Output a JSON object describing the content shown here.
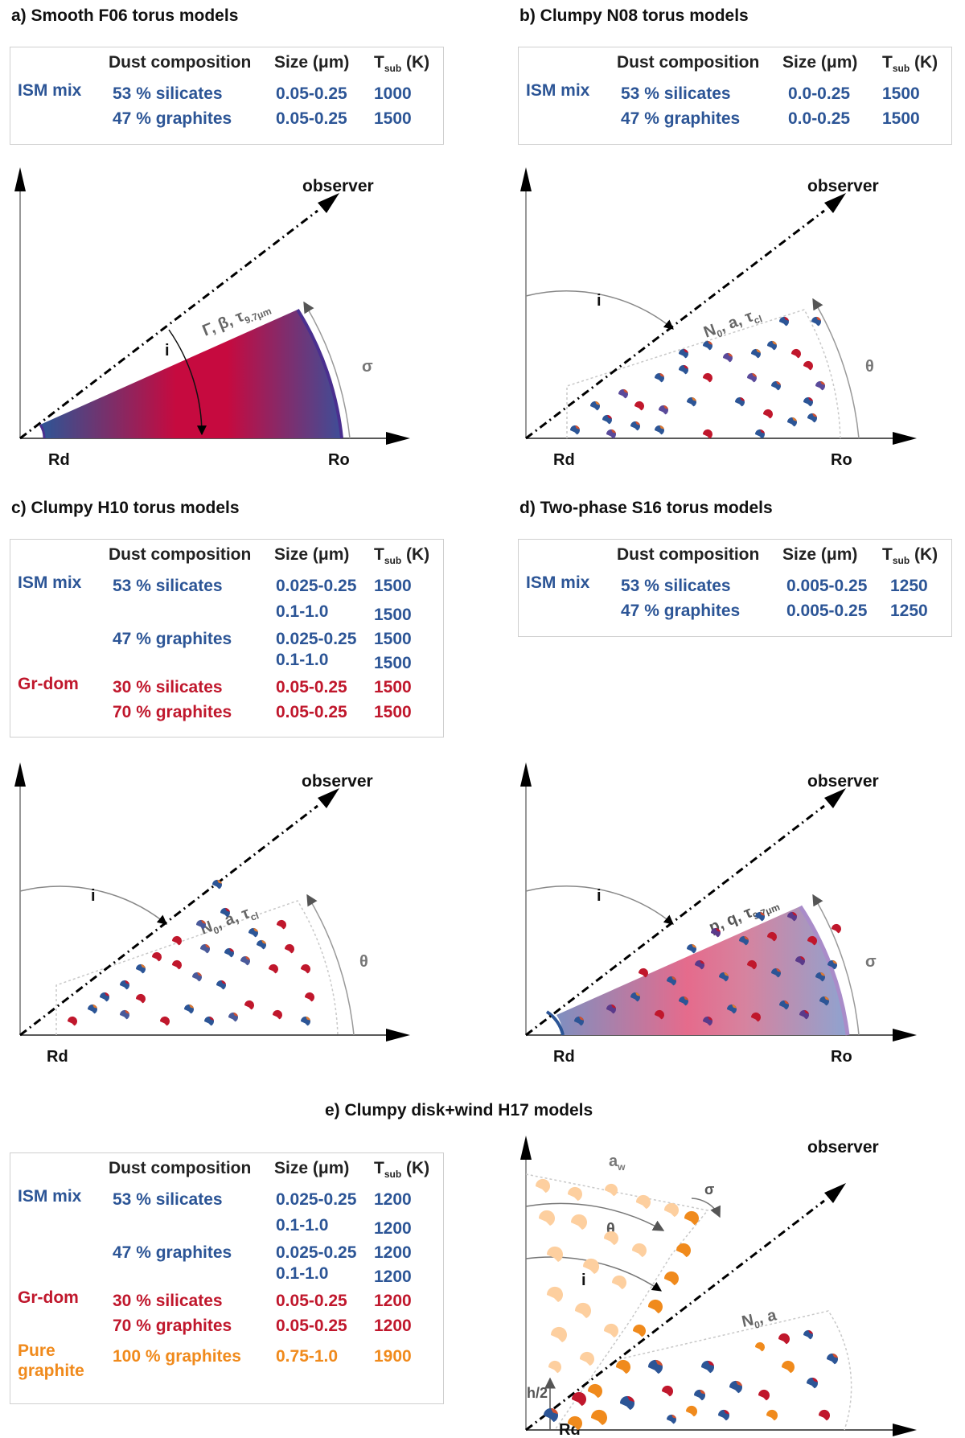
{
  "panels": {
    "a": {
      "title": "a) Smooth F06 torus models",
      "table": {
        "headers": {
          "composition": "Dust composition",
          "size": "Size (μm)",
          "tsub_main": "T",
          "tsub_sub": "sub",
          "tsub_unit": "(K)"
        },
        "groups": [
          {
            "name": "ISM mix",
            "rows": [
              {
                "composition": "53 % silicates",
                "size": "0.05-0.25",
                "tsub": "1000"
              },
              {
                "composition": "47 % graphites",
                "size": "0.05-0.25",
                "tsub": "1500"
              }
            ]
          }
        ]
      },
      "diagram": {
        "observer": "observer",
        "inner_radius": "Rd",
        "outer_radius": "Ro",
        "inclination": "i",
        "angle": "σ",
        "params": "Γ, β, τ",
        "params_sub": "9.7μm"
      }
    },
    "b": {
      "title": "b) Clumpy N08 torus models",
      "table": {
        "headers": {
          "composition": "Dust composition",
          "size": "Size (μm)",
          "tsub_main": "T",
          "tsub_sub": "sub",
          "tsub_unit": "(K)"
        },
        "groups": [
          {
            "name": "ISM mix",
            "rows": [
              {
                "composition": "53 % silicates",
                "size": "0.0-0.25",
                "tsub": "1500"
              },
              {
                "composition": "47 % graphites",
                "size": "0.0-0.25",
                "tsub": "1500"
              }
            ]
          }
        ]
      },
      "diagram": {
        "observer": "observer",
        "inner_radius": "Rd",
        "outer_radius": "Ro",
        "inclination": "i",
        "angle": "θ",
        "params_n": "N",
        "params_n_sub": "0",
        "params_rest": ", a, τ",
        "params_sub": "cl"
      }
    },
    "c": {
      "title": "c) Clumpy H10 torus models",
      "table": {
        "headers": {
          "composition": "Dust composition",
          "size": "Size (μm)",
          "tsub_main": "T",
          "tsub_sub": "sub",
          "tsub_unit": "(K)"
        },
        "groups": [
          {
            "name": "ISM mix",
            "rows": [
              {
                "composition": "53 % silicates",
                "size": "0.025-0.25",
                "tsub": "1500"
              },
              {
                "composition": "",
                "size": "0.1-1.0",
                "tsub": "1500"
              },
              {
                "composition": "47 % graphites",
                "size": "0.025-0.25",
                "tsub": "1500"
              },
              {
                "composition": "",
                "size": "0.1-1.0",
                "tsub": "1500"
              }
            ]
          },
          {
            "name": "Gr-dom",
            "rows": [
              {
                "composition": "30 % silicates",
                "size": "0.05-0.25",
                "tsub": "1500"
              },
              {
                "composition": "70 % graphites",
                "size": "0.05-0.25",
                "tsub": "1500"
              }
            ]
          }
        ]
      },
      "diagram": {
        "observer": "observer",
        "inner_radius": "Rd",
        "inclination": "i",
        "angle": "θ",
        "params_n": "N",
        "params_n_sub": "0",
        "params_rest": ", a, τ",
        "params_sub": "cl"
      }
    },
    "d": {
      "title": "d) Two-phase S16 torus models",
      "table": {
        "headers": {
          "composition": "Dust composition",
          "size": "Size (μm)",
          "tsub_main": "T",
          "tsub_sub": "sub",
          "tsub_unit": "(K)"
        },
        "groups": [
          {
            "name": "ISM mix",
            "rows": [
              {
                "composition": "53 % silicates",
                "size": "0.005-0.25",
                "tsub": "1250"
              },
              {
                "composition": "47 % graphites",
                "size": "0.005-0.25",
                "tsub": "1250"
              }
            ]
          }
        ]
      },
      "diagram": {
        "observer": "observer",
        "inner_radius": "Rd",
        "outer_radius": "Ro",
        "inclination": "i",
        "angle": "σ",
        "params": "p, q, τ",
        "params_sub": "9.7μm"
      }
    },
    "e": {
      "title": "e) Clumpy disk+wind H17 models",
      "table": {
        "headers": {
          "composition": "Dust composition",
          "size": "Size (μm)",
          "tsub_main": "T",
          "tsub_sub": "sub",
          "tsub_unit": "(K)"
        },
        "groups": [
          {
            "name": "ISM mix",
            "rows": [
              {
                "composition": "53 % silicates",
                "size": "0.025-0.25",
                "tsub": "1200"
              },
              {
                "composition": "",
                "size": "0.1-1.0",
                "tsub": "1200"
              },
              {
                "composition": "47 % graphites",
                "size": "0.025-0.25",
                "tsub": "1200"
              },
              {
                "composition": "",
                "size": "0.1-1.0",
                "tsub": "1200"
              }
            ]
          },
          {
            "name": "Gr-dom",
            "rows": [
              {
                "composition": "30 % silicates",
                "size": "0.05-0.25",
                "tsub": "1200"
              },
              {
                "composition": "70 % graphites",
                "size": "0.05-0.25",
                "tsub": "1200"
              }
            ]
          },
          {
            "name_line1": "Pure",
            "name_line2": "graphite",
            "rows": [
              {
                "composition": "100 % graphites",
                "size": "0.75-1.0",
                "tsub": "1900"
              }
            ]
          }
        ]
      },
      "diagram": {
        "observer": "observer",
        "inner_radius": "Rd",
        "inclination": "i",
        "wind_angle": "θ",
        "wind_width": "σ",
        "wind_param": "a",
        "wind_param_sub": "w",
        "disk_params_n": "N",
        "disk_params_n_sub": "0",
        "disk_params_rest": ", a",
        "height": "h/2"
      }
    }
  },
  "colors": {
    "blue": "#2c5596",
    "red": "#c0172c",
    "orange": "#f08a1c",
    "light_orange": "#fdcf9f",
    "purple": "#4a2f8f"
  }
}
